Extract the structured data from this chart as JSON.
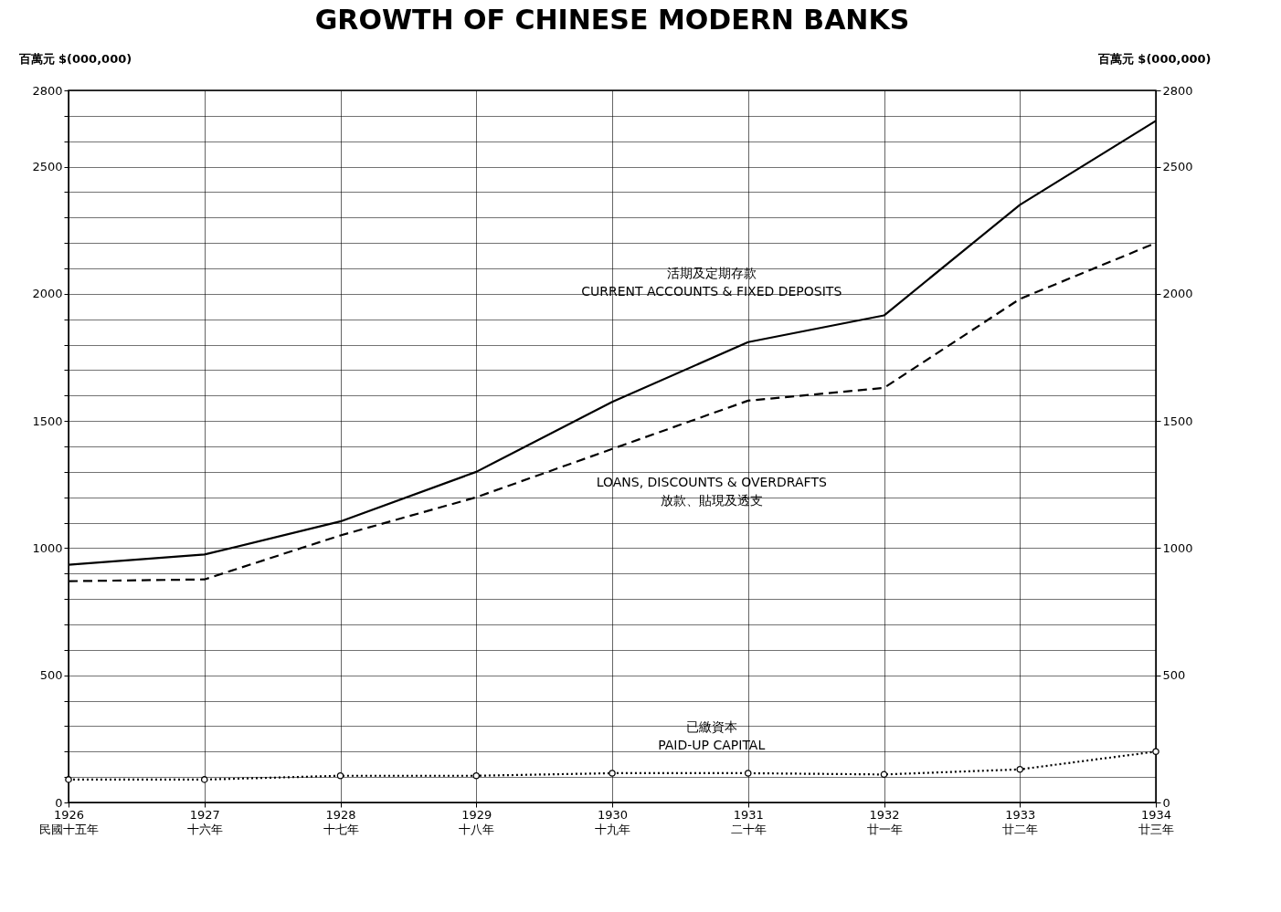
{
  "chart_data": {
    "type": "line",
    "title": "GROWTH OF CHINESE MODERN BANKS",
    "ylabel": "百萬元\n$(000,000)",
    "y2label": "百萬元\n$(000,000)",
    "categories": [
      "1926\n民國十五年",
      "1927\n十六年",
      "1928\n十七年",
      "1929\n十八年",
      "1930\n十九年",
      "1931\n二十年",
      "1932\n廿一年",
      "1933\n廿二年",
      "1934\n廿三年"
    ],
    "series": [
      {
        "name": "活期及定期存款\nCURRENT ACCOUNTS & FIXED DEPOSITS",
        "color": "#000000",
        "line_style": "solid",
        "marker": "none",
        "values": [
          935,
          975,
          1105,
          1300,
          1575,
          1810,
          1915,
          2350,
          2680
        ]
      },
      {
        "name": "LOANS, DISCOUNTS & OVERDRAFTS\n放款、貼現及透支",
        "color": "#000000",
        "line_style": "dashed",
        "marker": "none",
        "axis": "y2",
        "values": [
          870,
          877,
          1050,
          1200,
          1390,
          1580,
          1630,
          1980,
          2200
        ]
      },
      {
        "name": "已繳資本\nPAID-UP CAPITAL",
        "color": "#000000",
        "line_style": "dotted",
        "marker": "circle",
        "values": [
          90,
          90,
          105,
          105,
          115,
          115,
          110,
          130,
          200
        ]
      }
    ],
    "ylim": [
      0,
      2800
    ],
    "y2lim": [
      0,
      2800
    ],
    "yticks": [
      0,
      {
        "value": 100,
        "label": null
      },
      {
        "value": 200,
        "label": null
      },
      {
        "value": 300,
        "label": null
      },
      {
        "value": 400,
        "label": null
      },
      500,
      {
        "value": 600,
        "label": null
      },
      {
        "value": 700,
        "label": null
      },
      {
        "value": 800,
        "label": null
      },
      {
        "value": 900,
        "label": null
      },
      1000,
      {
        "value": 1100,
        "label": null
      },
      {
        "value": 1200,
        "label": null
      },
      {
        "value": 1300,
        "label": null
      },
      {
        "value": 1400,
        "label": null
      },
      1500,
      {
        "value": 1600,
        "label": null
      },
      {
        "value": 1700,
        "label": null
      },
      {
        "value": 1800,
        "label": null
      },
      {
        "value": 1900,
        "label": null
      },
      2000,
      {
        "value": 2100,
        "label": null
      },
      {
        "value": 2200,
        "label": null
      },
      {
        "value": 2300,
        "label": null
      },
      {
        "value": 2400,
        "label": null
      },
      2500,
      {
        "value": 2600,
        "label": null
      },
      {
        "value": 2700,
        "label": null
      },
      2800
    ],
    "y2ticks": [
      0,
      500,
      1000,
      1500,
      2000,
      2500,
      2800
    ],
    "grid": true
  }
}
